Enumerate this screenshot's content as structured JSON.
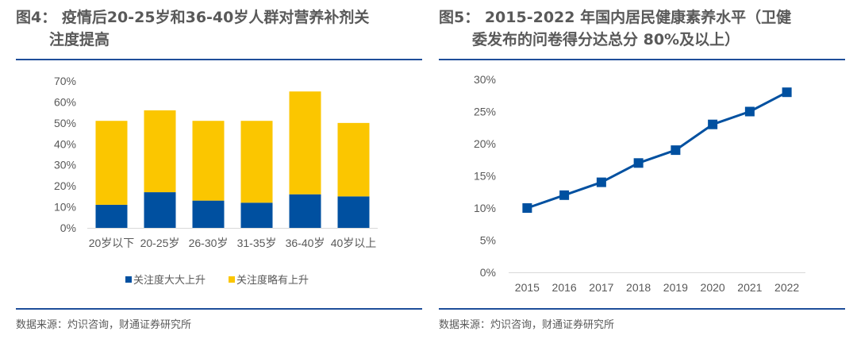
{
  "colors": {
    "blue": "#0050a0",
    "yellow": "#fbc600",
    "axis": "#d9d9d9",
    "text": "#595959",
    "rule": "#1f4e9a"
  },
  "panels": [
    {
      "title_line1": "图4：  疫情后20-25岁和36-40岁人群对营养补剂关",
      "title_line2": "注度提高",
      "source": "数据来源：灼识咨询，财通证券研究所"
    },
    {
      "title_line1": "图5：   2015-2022 年国内居民健康素养水平（卫健",
      "title_line2": "委发布的问卷得分达总分 80%及以上）",
      "source": "数据来源：灼识咨询，财通证券研究所"
    }
  ],
  "chart_data": [
    {
      "type": "bar",
      "stacked": true,
      "title": "疫情后20-25岁和36-40岁人群对营养补剂关注度提高",
      "categories": [
        "20岁以下",
        "20-25岁",
        "26-30岁",
        "31-35岁",
        "36-40岁",
        "40岁以上"
      ],
      "series": [
        {
          "name": "关注度大大上升",
          "color": "#0050a0",
          "values": [
            11,
            17,
            13,
            12,
            16,
            15
          ]
        },
        {
          "name": "关注度略有上升",
          "color": "#fbc600",
          "values": [
            40,
            39,
            38,
            39,
            49,
            35
          ]
        }
      ],
      "ylim": [
        0,
        70
      ],
      "yticks": [
        0,
        10,
        20,
        30,
        40,
        50,
        60,
        70
      ],
      "ytick_labels": [
        "0%",
        "10%",
        "20%",
        "30%",
        "40%",
        "50%",
        "60%",
        "70%"
      ],
      "xlabel": "",
      "ylabel": "",
      "grid": false,
      "legend": "bottom"
    },
    {
      "type": "line",
      "title": "2015-2022 年国内居民健康素养水平（卫健委发布的问卷得分达总分 80%及以上）",
      "x": [
        "2015",
        "2016",
        "2017",
        "2018",
        "2019",
        "2020",
        "2021",
        "2022"
      ],
      "series": [
        {
          "name": "健康素养水平",
          "color": "#0050a0",
          "marker": "square",
          "values": [
            10,
            12,
            14,
            17,
            19,
            23,
            25,
            28
          ]
        }
      ],
      "ylim": [
        0,
        30
      ],
      "yticks": [
        0,
        5,
        10,
        15,
        20,
        25,
        30
      ],
      "ytick_labels": [
        "0%",
        "5%",
        "10%",
        "15%",
        "20%",
        "25%",
        "30%"
      ],
      "xlabel": "",
      "ylabel": "",
      "grid": false,
      "legend": "none"
    }
  ]
}
